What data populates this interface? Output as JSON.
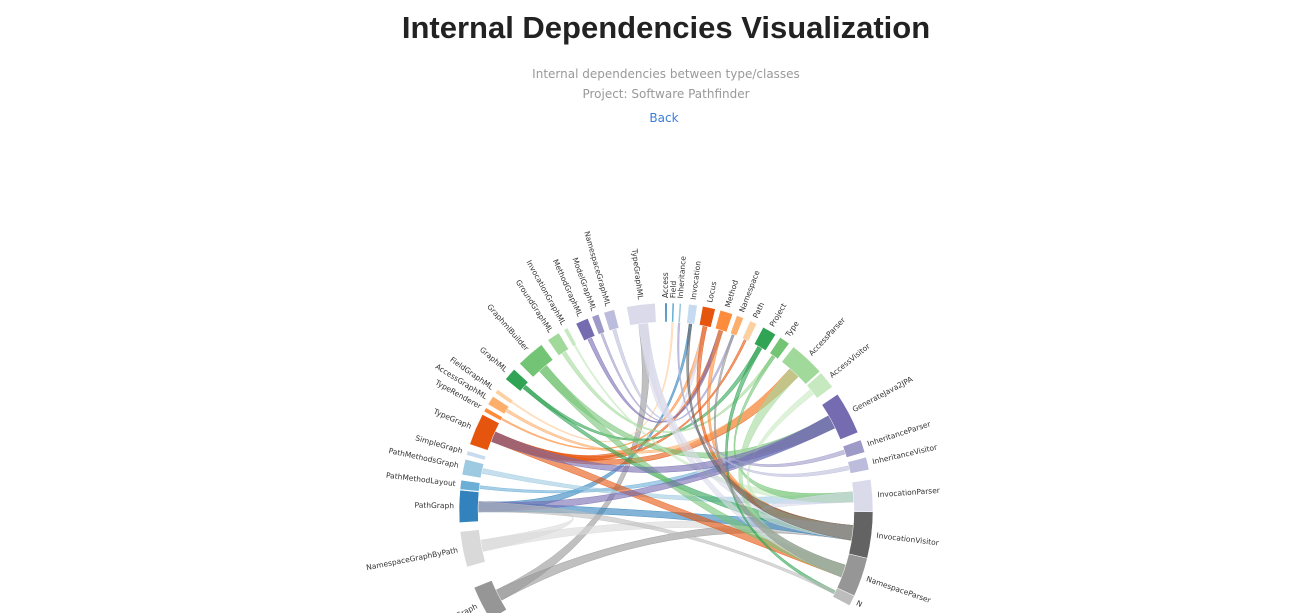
{
  "header": {
    "title": "Internal Dependencies Visualization",
    "subtitle": "Internal dependencies between type/classes",
    "project": "Project: Software Pathfinder",
    "back": "Back"
  },
  "nodes": [
    {
      "label": "NamespaceGraph"
    },
    {
      "label": "NamespaceGraphByPath"
    },
    {
      "label": "PathGraph"
    },
    {
      "label": "PathMethodLayout"
    },
    {
      "label": "PathMethodsGraph"
    },
    {
      "label": "SimpleGraph"
    },
    {
      "label": "TypeGraph"
    },
    {
      "label": "TypeRenderer"
    },
    {
      "label": "AccessGraphML"
    },
    {
      "label": "FieldGraphML"
    },
    {
      "label": "GraphML"
    },
    {
      "label": "GraphmlBuilder"
    },
    {
      "label": "GroundGraphML"
    },
    {
      "label": "InvocationGraphML"
    },
    {
      "label": "MethodGraphML"
    },
    {
      "label": "ModelGraphML"
    },
    {
      "label": "NamespaceGraphML"
    },
    {
      "label": "TypeGraphML"
    },
    {
      "label": "Access"
    },
    {
      "label": "Field"
    },
    {
      "label": "Inheritance"
    },
    {
      "label": "Invocation"
    },
    {
      "label": "Locus"
    },
    {
      "label": "Method"
    },
    {
      "label": "Namespace"
    },
    {
      "label": "Path"
    },
    {
      "label": "Project"
    },
    {
      "label": "Type"
    },
    {
      "label": "AccessParser"
    },
    {
      "label": "AccessVisitor"
    },
    {
      "label": "GenerateJava2JPA"
    },
    {
      "label": "InheritanceParser"
    },
    {
      "label": "InheritanceVisitor"
    },
    {
      "label": "InvocationParser"
    },
    {
      "label": "InvocationVisitor"
    },
    {
      "label": "NamespaceParser"
    },
    {
      "label": "N"
    }
  ]
}
